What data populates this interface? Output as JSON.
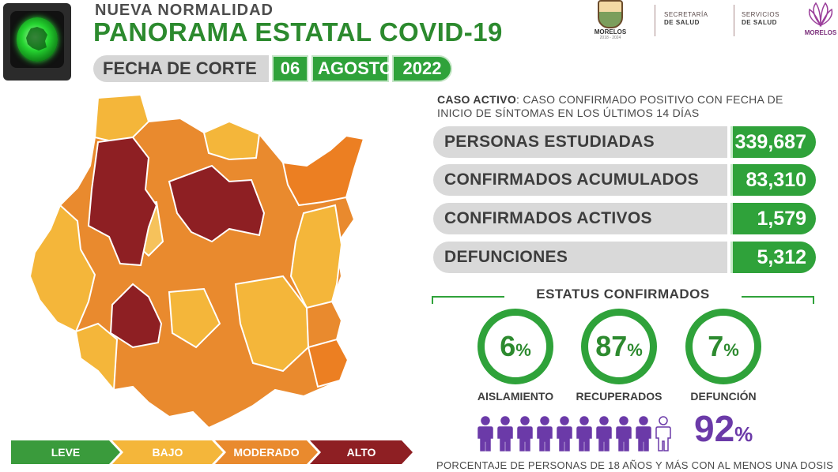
{
  "header": {
    "kicker": "NUEVA NORMALIDAD",
    "title": "PANORAMA ESTATAL COVID-19",
    "date_label": "FECHA DE CORTE",
    "date_day": "06",
    "date_month": "AGOSTO",
    "date_year": "2022"
  },
  "logos": {
    "state": "MORELOS",
    "state_period": "2018 - 2024",
    "secretaria_1": "SECRETARÍA",
    "secretaria_2": "DE SALUD",
    "servicios_1": "SERVICIOS",
    "servicios_2": "DE SALUD",
    "brand": "MORELOS"
  },
  "definition": {
    "term": "CASO ACTIVO",
    "text": ": CASO CONFIRMADO POSITIVO CON FECHA DE INICIO DE SÍNTOMAS EN LOS ÚLTIMOS 14 DÍAS"
  },
  "stats": [
    {
      "label": "PERSONAS ESTUDIADAS",
      "value": "339,687"
    },
    {
      "label": "CONFIRMADOS ACUMULADOS",
      "value": "83,310"
    },
    {
      "label": "CONFIRMADOS ACTIVOS",
      "value": "1,579"
    },
    {
      "label": "DEFUNCIONES",
      "value": "5,312"
    }
  ],
  "status": {
    "title": "ESTATUS CONFIRMADOS",
    "items": [
      {
        "value": "6",
        "unit": "%",
        "label": "AISLAMIENTO"
      },
      {
        "value": "87",
        "unit": "%",
        "label": "RECUPERADOS"
      },
      {
        "value": "7",
        "unit": "%",
        "label": "DEFUNCIÓN"
      }
    ]
  },
  "vaccination": {
    "value": "92",
    "unit": "%",
    "filled_people": 9,
    "total_people": 10,
    "caption": "PORCENTAJE DE PERSONAS DE 18 AÑOS Y MÁS CON AL MENOS UNA DOSIS"
  },
  "legend": [
    {
      "label": "LEVE",
      "color": "#3a9b3c"
    },
    {
      "label": "BAJO",
      "color": "#f4b63a"
    },
    {
      "label": "MODERADO",
      "color": "#e98a2e"
    },
    {
      "label": "ALTO",
      "color": "#8e1f23"
    }
  ],
  "colors": {
    "green": "#2fa23a",
    "purple": "#6b3aa8",
    "traffic_light": "#25d430"
  },
  "icons": {
    "traffic_light": "traffic-light-green-icon",
    "person": "person-icon"
  }
}
